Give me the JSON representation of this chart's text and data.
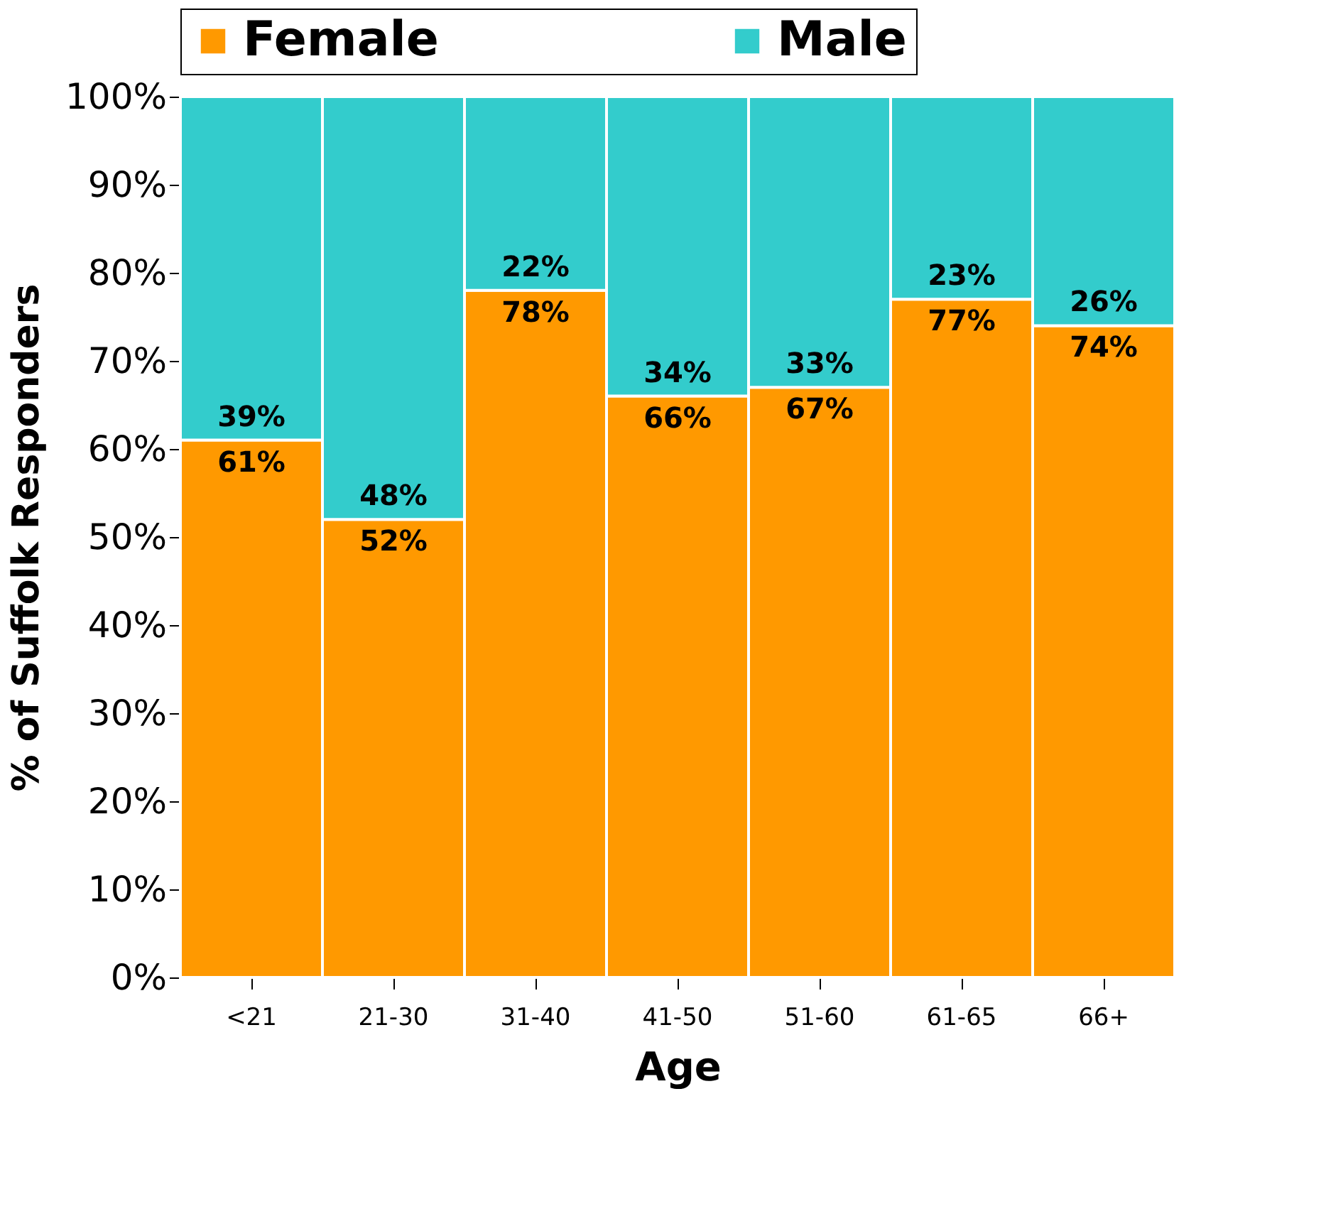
{
  "chart_data": {
    "type": "bar",
    "stacked": true,
    "xlabel": "Age",
    "ylabel": "% of Suffolk Responders",
    "categories": [
      "<21",
      "21-30",
      "31-40",
      "41-50",
      "51-60",
      "61-65",
      "66+"
    ],
    "series": [
      {
        "name": "Female",
        "color": "#ff9900",
        "values": [
          61,
          52,
          78,
          66,
          67,
          77,
          74
        ],
        "value_labels": [
          "61%",
          "52%",
          "78%",
          "66%",
          "67%",
          "77%",
          "74%"
        ]
      },
      {
        "name": "Male",
        "color": "#33cccc",
        "values": [
          39,
          48,
          22,
          34,
          33,
          23,
          26
        ],
        "value_labels": [
          "39%",
          "48%",
          "22%",
          "34%",
          "33%",
          "23%",
          "26%"
        ]
      }
    ],
    "ylim": [
      0,
      100
    ],
    "yticks": [
      {
        "value": 0,
        "label": "0%"
      },
      {
        "value": 10,
        "label": "10%"
      },
      {
        "value": 20,
        "label": "20%"
      },
      {
        "value": 30,
        "label": "30%"
      },
      {
        "value": 40,
        "label": "40%"
      },
      {
        "value": 50,
        "label": "50%"
      },
      {
        "value": 60,
        "label": "60%"
      },
      {
        "value": 70,
        "label": "70%"
      },
      {
        "value": 80,
        "label": "80%"
      },
      {
        "value": 90,
        "label": "90%"
      },
      {
        "value": 100,
        "label": "100%"
      }
    ],
    "legend": "top"
  }
}
